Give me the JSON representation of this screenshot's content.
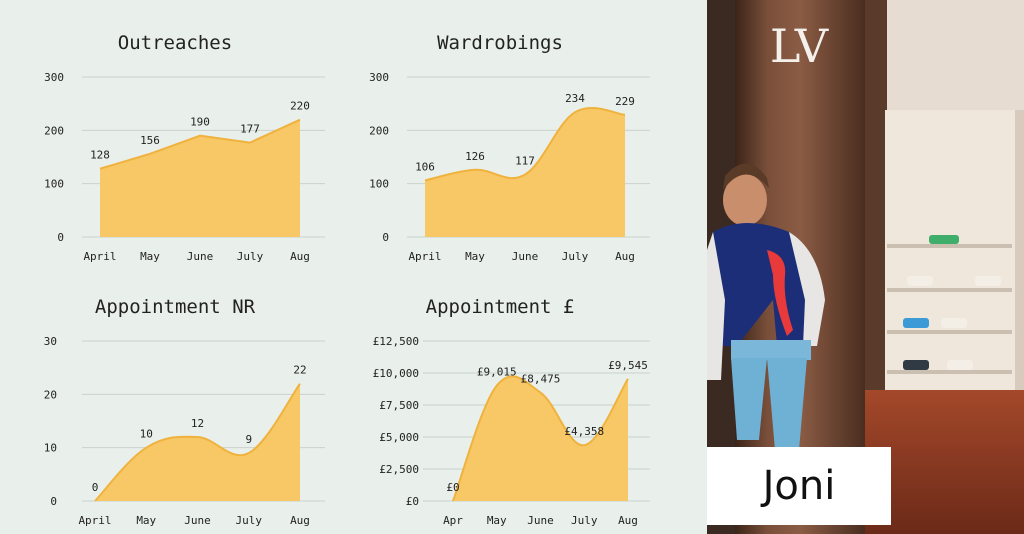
{
  "colors": {
    "area": "#f7c865",
    "line": "#f0b23e",
    "grid": "#c9d2cd",
    "background": "#e9f0ec"
  },
  "chart_data": [
    {
      "type": "area",
      "title": "Outreaches",
      "categories": [
        "April",
        "May",
        "June",
        "July",
        "Aug"
      ],
      "values": [
        128,
        156,
        190,
        177,
        220
      ],
      "labels": [
        "128",
        "156",
        "190",
        "177",
        "220"
      ],
      "yticks": [
        "0",
        "100",
        "200",
        "300"
      ],
      "ylim": [
        0,
        300
      ],
      "curve": "linear",
      "grid": true
    },
    {
      "type": "area",
      "title": "Wardrobings",
      "categories": [
        "April",
        "May",
        "June",
        "July",
        "Aug"
      ],
      "values": [
        106,
        126,
        117,
        234,
        229
      ],
      "labels": [
        "106",
        "126",
        "117",
        "234",
        "229"
      ],
      "yticks": [
        "0",
        "100",
        "200",
        "300"
      ],
      "ylim": [
        0,
        300
      ],
      "curve": "smooth",
      "grid": true
    },
    {
      "type": "area",
      "title": "Appointment NR",
      "categories": [
        "April",
        "May",
        "June",
        "July",
        "Aug"
      ],
      "values": [
        0,
        10,
        12,
        9,
        22
      ],
      "labels": [
        "0",
        "10",
        "12",
        "9",
        "22"
      ],
      "yticks": [
        "0",
        "10",
        "20",
        "30"
      ],
      "ylim": [
        0,
        30
      ],
      "curve": "smooth",
      "grid": true
    },
    {
      "type": "area",
      "title": "Appointment £",
      "categories": [
        "Apr",
        "May",
        "June",
        "July",
        "Aug"
      ],
      "values": [
        0,
        9015,
        8475,
        4358,
        9545
      ],
      "labels": [
        "£0",
        "£9,015",
        "£8,475",
        "£4,358",
        "£9,545"
      ],
      "yticks": [
        "£0",
        "£2,500",
        "£5,000",
        "£7,500",
        "£10,000",
        "£12,500"
      ],
      "ylim": [
        0,
        12500
      ],
      "curve": "smooth",
      "grid": true
    }
  ],
  "photo": {
    "name": "Joni",
    "logo": "LV"
  }
}
